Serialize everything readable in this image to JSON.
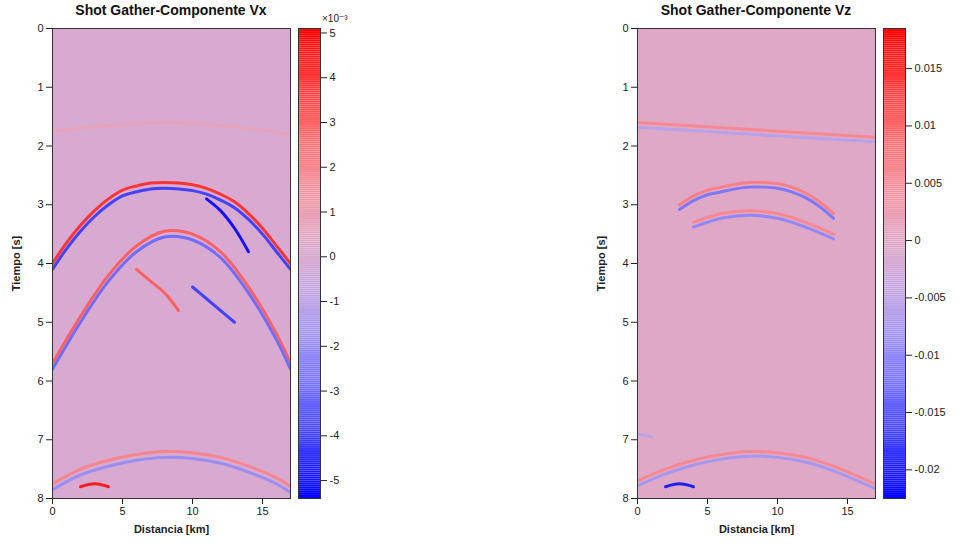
{
  "chart_data": [
    {
      "type": "shot_gather",
      "title": "Shot Gather-Componente Vx",
      "xlabel": "Distancia [km]",
      "ylabel": "Tiempo [s]",
      "xlim": [
        0,
        17
      ],
      "xticks": [
        0,
        5,
        10,
        15
      ],
      "ylim": [
        0,
        8
      ],
      "yticks": [
        0,
        1,
        2,
        3,
        4,
        5,
        6,
        7,
        8
      ],
      "colorbar": {
        "range": [
          -0.0054,
          0.0051
        ],
        "exponent": "×10⁻³",
        "ticks": [
          {
            "value": -0.005,
            "label": "-5"
          },
          {
            "value": -0.004,
            "label": "-4"
          },
          {
            "value": -0.003,
            "label": "-3"
          },
          {
            "value": -0.002,
            "label": "-2"
          },
          {
            "value": -0.001,
            "label": "-1"
          },
          {
            "value": 0,
            "label": "0"
          },
          {
            "value": 0.001,
            "label": "1"
          },
          {
            "value": 0.002,
            "label": "2"
          },
          {
            "value": 0.003,
            "label": "3"
          },
          {
            "value": 0.004,
            "label": "4"
          },
          {
            "value": 0.005,
            "label": "5"
          }
        ]
      },
      "events": [
        {
          "x": [
            0,
            4,
            8,
            12,
            17
          ],
          "t": [
            1.75,
            1.65,
            1.6,
            1.65,
            1.8
          ],
          "amplitude": 0.0008
        },
        {
          "x": [
            0,
            1,
            2,
            3,
            4,
            5,
            6,
            7,
            8,
            9,
            10,
            11,
            12,
            13,
            14,
            15,
            16,
            17
          ],
          "t": [
            4.0,
            3.65,
            3.35,
            3.1,
            2.9,
            2.75,
            2.68,
            2.63,
            2.62,
            2.63,
            2.66,
            2.72,
            2.82,
            2.95,
            3.15,
            3.4,
            3.7,
            4.0
          ],
          "amplitude": 0.004
        },
        {
          "x": [
            0,
            1,
            2,
            3,
            4,
            5,
            6,
            7,
            8,
            9,
            10,
            11,
            12,
            13,
            14,
            15,
            16,
            17
          ],
          "t": [
            4.1,
            3.75,
            3.45,
            3.2,
            3.0,
            2.85,
            2.78,
            2.73,
            2.72,
            2.73,
            2.76,
            2.82,
            2.92,
            3.05,
            3.25,
            3.5,
            3.8,
            4.1
          ],
          "amplitude": -0.004
        },
        {
          "x": [
            0,
            2,
            4,
            6,
            8,
            10,
            12,
            14,
            16,
            17
          ],
          "t": [
            5.7,
            4.9,
            4.2,
            3.7,
            3.45,
            3.5,
            3.8,
            4.4,
            5.2,
            5.7
          ],
          "amplitude": 0.003
        },
        {
          "x": [
            0,
            2,
            4,
            6,
            8,
            10,
            12,
            14,
            16,
            17
          ],
          "t": [
            5.8,
            5.0,
            4.3,
            3.8,
            3.55,
            3.6,
            3.9,
            4.5,
            5.3,
            5.8
          ],
          "amplitude": -0.003
        },
        {
          "x": [
            11,
            12,
            13,
            14
          ],
          "t": [
            2.9,
            3.1,
            3.4,
            3.8
          ],
          "amplitude": -0.005
        },
        {
          "x": [
            6,
            7,
            8,
            9
          ],
          "t": [
            4.1,
            4.3,
            4.5,
            4.8
          ],
          "amplitude": 0.003
        },
        {
          "x": [
            10,
            11,
            12,
            13
          ],
          "t": [
            4.4,
            4.6,
            4.8,
            5.0
          ],
          "amplitude": -0.004
        },
        {
          "x": [
            0,
            2,
            4,
            6,
            8,
            10,
            12,
            14,
            16,
            17
          ],
          "t": [
            7.75,
            7.5,
            7.35,
            7.25,
            7.2,
            7.22,
            7.3,
            7.45,
            7.65,
            7.8
          ],
          "amplitude": 0.002
        },
        {
          "x": [
            0,
            2,
            4,
            6,
            8,
            10,
            12,
            14,
            16,
            17
          ],
          "t": [
            7.85,
            7.6,
            7.45,
            7.35,
            7.3,
            7.32,
            7.4,
            7.55,
            7.75,
            7.9
          ],
          "amplitude": -0.002
        },
        {
          "x": [
            2,
            3,
            4
          ],
          "t": [
            7.8,
            7.75,
            7.8
          ],
          "amplitude": 0.0045
        }
      ]
    },
    {
      "type": "shot_gather",
      "title": "Shot Gather-Componente Vz",
      "xlabel": "Distancia [km]",
      "ylabel": "Tiempo [s]",
      "xlim": [
        0,
        17
      ],
      "xticks": [
        0,
        5,
        10,
        15
      ],
      "ylim": [
        0,
        8
      ],
      "yticks": [
        0,
        1,
        2,
        3,
        4,
        5,
        6,
        7,
        8
      ],
      "colorbar": {
        "range": [
          -0.0225,
          0.0185
        ],
        "ticks": [
          -0.02,
          -0.015,
          -0.01,
          -0.005,
          0,
          0.005,
          0.01,
          0.015
        ]
      },
      "events": [
        {
          "x": [
            0,
            17
          ],
          "t": [
            1.6,
            1.85
          ],
          "amplitude": 0.006
        },
        {
          "x": [
            0,
            17
          ],
          "t": [
            1.68,
            1.93
          ],
          "amplitude": -0.006
        },
        {
          "x": [
            3,
            4,
            5,
            6,
            7,
            8,
            9,
            10,
            11,
            12,
            13,
            14
          ],
          "t": [
            3.0,
            2.85,
            2.75,
            2.7,
            2.65,
            2.62,
            2.62,
            2.64,
            2.7,
            2.8,
            2.95,
            3.15
          ],
          "amplitude": 0.007
        },
        {
          "x": [
            3,
            4,
            5,
            6,
            7,
            8,
            9,
            10,
            11,
            12,
            13,
            14
          ],
          "t": [
            3.08,
            2.93,
            2.83,
            2.78,
            2.73,
            2.7,
            2.7,
            2.72,
            2.78,
            2.88,
            3.03,
            3.23
          ],
          "amplitude": -0.012
        },
        {
          "x": [
            4,
            6,
            8,
            10,
            12,
            14
          ],
          "t": [
            3.3,
            3.15,
            3.1,
            3.15,
            3.3,
            3.5
          ],
          "amplitude": 0.006
        },
        {
          "x": [
            4,
            6,
            8,
            10,
            12,
            14
          ],
          "t": [
            3.38,
            3.23,
            3.18,
            3.23,
            3.38,
            3.58
          ],
          "amplitude": -0.01
        },
        {
          "x": [
            0,
            1
          ],
          "t": [
            6.9,
            6.95
          ],
          "amplitude": -0.006
        },
        {
          "x": [
            0,
            2,
            4,
            6,
            8,
            10,
            12,
            14,
            16,
            17
          ],
          "t": [
            7.7,
            7.5,
            7.35,
            7.25,
            7.2,
            7.22,
            7.3,
            7.45,
            7.65,
            7.75
          ],
          "amplitude": 0.006
        },
        {
          "x": [
            0,
            2,
            4,
            6,
            8,
            10,
            12,
            14,
            16,
            17
          ],
          "t": [
            7.78,
            7.58,
            7.43,
            7.33,
            7.28,
            7.3,
            7.38,
            7.53,
            7.73,
            7.83
          ],
          "amplitude": -0.008
        },
        {
          "x": [
            2,
            3,
            4
          ],
          "t": [
            7.8,
            7.75,
            7.8
          ],
          "amplitude": -0.02
        }
      ]
    }
  ]
}
